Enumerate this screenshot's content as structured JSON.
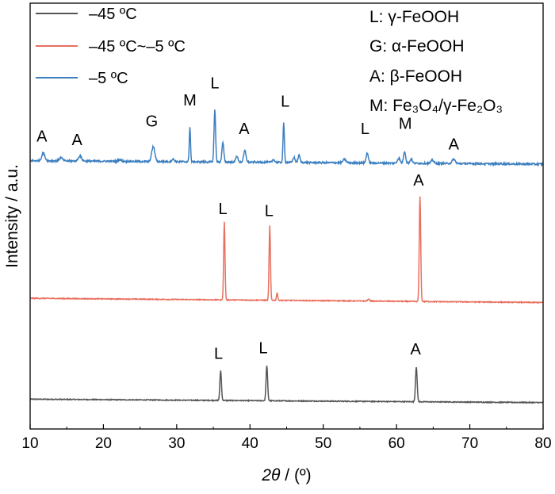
{
  "chart_data": {
    "type": "line",
    "xlabel_sym": "2θ",
    "xlabel_rest": " / (º)",
    "ylabel": "Intensity / a.u.",
    "xlim": [
      10,
      80
    ],
    "xticks": [
      10,
      20,
      30,
      40,
      50,
      60,
      70,
      80
    ],
    "ylim": [
      0,
      1
    ],
    "legend_position": "top-left",
    "grid": false,
    "legend": [
      {
        "label": "–45 ºC",
        "color": "#555555"
      },
      {
        "label": "–45 ºC~–5 ºC",
        "color": "#e8705f"
      },
      {
        "label": "–5 ºC",
        "color": "#3c7fc0"
      }
    ],
    "phase_key": [
      {
        "label": "L: γ-FeOOH"
      },
      {
        "label": "G: α-FeOOH"
      },
      {
        "label": "A: β-FeOOH"
      },
      {
        "label": "M: Fe₃O₄/γ-Fe₂O₃"
      }
    ],
    "series": [
      {
        "color": "#555555",
        "baseline_start": 0.07,
        "baseline_end": 0.062,
        "noise": 0.002,
        "peaks": [
          {
            "x": 36.0,
            "h": 0.07,
            "w": 0.15
          },
          {
            "x": 42.3,
            "h": 0.083,
            "w": 0.15
          },
          {
            "x": 62.7,
            "h": 0.082,
            "w": 0.16
          }
        ],
        "annotations": [
          {
            "text": "L",
            "x": 35.7,
            "y": 0.165
          },
          {
            "text": "L",
            "x": 41.8,
            "y": 0.178
          },
          {
            "text": "A",
            "x": 62.6,
            "y": 0.175
          }
        ]
      },
      {
        "color": "#e8705f",
        "baseline_start": 0.307,
        "baseline_end": 0.297,
        "noise": 0.002,
        "peaks": [
          {
            "x": 36.5,
            "h": 0.183,
            "w": 0.13
          },
          {
            "x": 42.7,
            "h": 0.175,
            "w": 0.13
          },
          {
            "x": 43.7,
            "h": 0.018,
            "w": 0.12
          },
          {
            "x": 56.2,
            "h": 0.004,
            "w": 0.2
          },
          {
            "x": 63.2,
            "h": 0.247,
            "w": 0.14
          }
        ],
        "annotations": [
          {
            "text": "L",
            "x": 36.3,
            "y": 0.505
          },
          {
            "text": "L",
            "x": 42.6,
            "y": 0.5
          },
          {
            "text": "A",
            "x": 63.0,
            "y": 0.572
          }
        ]
      },
      {
        "color": "#3c7fc0",
        "baseline_start": 0.63,
        "baseline_end": 0.622,
        "noise": 0.004,
        "peaks": [
          {
            "x": 11.8,
            "h": 0.018,
            "w": 0.3
          },
          {
            "x": 14.2,
            "h": 0.008,
            "w": 0.3
          },
          {
            "x": 16.8,
            "h": 0.012,
            "w": 0.3
          },
          {
            "x": 22.2,
            "h": 0.004,
            "w": 0.3
          },
          {
            "x": 26.8,
            "h": 0.035,
            "w": 0.3
          },
          {
            "x": 29.5,
            "h": 0.006,
            "w": 0.25
          },
          {
            "x": 31.8,
            "h": 0.082,
            "w": 0.12
          },
          {
            "x": 35.2,
            "h": 0.123,
            "w": 0.15
          },
          {
            "x": 36.3,
            "h": 0.045,
            "w": 0.18
          },
          {
            "x": 38.2,
            "h": 0.015,
            "w": 0.2
          },
          {
            "x": 39.3,
            "h": 0.027,
            "w": 0.22
          },
          {
            "x": 43.2,
            "h": 0.007,
            "w": 0.2
          },
          {
            "x": 44.6,
            "h": 0.092,
            "w": 0.13
          },
          {
            "x": 46.0,
            "h": 0.012,
            "w": 0.2
          },
          {
            "x": 46.7,
            "h": 0.017,
            "w": 0.2
          },
          {
            "x": 52.9,
            "h": 0.008,
            "w": 0.3
          },
          {
            "x": 56.0,
            "h": 0.024,
            "w": 0.2
          },
          {
            "x": 60.3,
            "h": 0.012,
            "w": 0.25
          },
          {
            "x": 61.1,
            "h": 0.028,
            "w": 0.2
          },
          {
            "x": 62.0,
            "h": 0.01,
            "w": 0.2
          },
          {
            "x": 64.9,
            "h": 0.008,
            "w": 0.25
          },
          {
            "x": 67.8,
            "h": 0.01,
            "w": 0.3
          }
        ],
        "annotations": [
          {
            "text": "A",
            "x": 11.6,
            "y": 0.675
          },
          {
            "text": "A",
            "x": 16.4,
            "y": 0.667
          },
          {
            "text": "G",
            "x": 26.6,
            "y": 0.71
          },
          {
            "text": "M",
            "x": 31.8,
            "y": 0.76
          },
          {
            "text": "L",
            "x": 35.2,
            "y": 0.8
          },
          {
            "text": "A",
            "x": 39.2,
            "y": 0.693
          },
          {
            "text": "L",
            "x": 44.8,
            "y": 0.757
          },
          {
            "text": "L",
            "x": 55.7,
            "y": 0.693
          },
          {
            "text": "M",
            "x": 61.2,
            "y": 0.705
          },
          {
            "text": "A",
            "x": 67.8,
            "y": 0.656
          }
        ]
      }
    ]
  }
}
